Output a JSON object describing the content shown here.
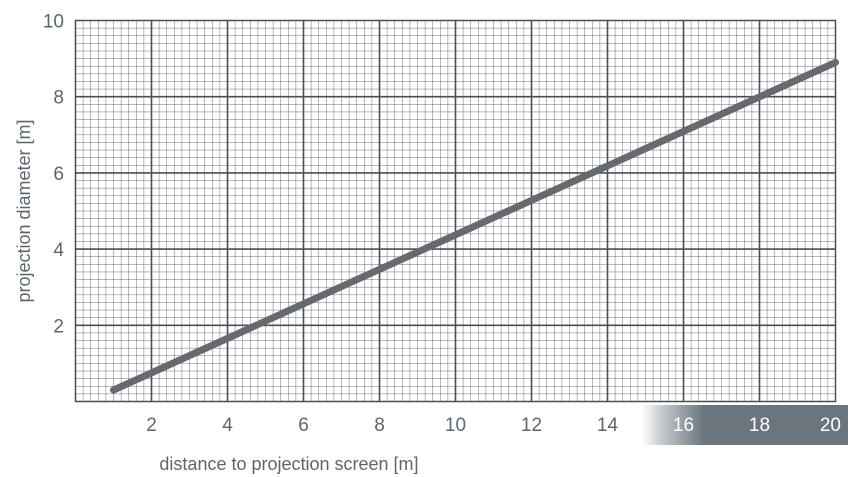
{
  "chart_data": {
    "type": "line",
    "title": "",
    "xlabel": "distance to projection screen [m]",
    "ylabel": "projection diameter [m]",
    "xlim": [
      0,
      20
    ],
    "ylim": [
      0,
      10
    ],
    "x_ticks": [
      2,
      4,
      6,
      8,
      10,
      12,
      14,
      16,
      18,
      20
    ],
    "y_ticks": [
      2,
      4,
      6,
      8,
      10
    ],
    "grid": true,
    "colors": {
      "line": "#666a6e",
      "grid": "#4a4f55",
      "tick_text": "#5c6670",
      "band": "#6b757d"
    },
    "series": [
      {
        "x": [
          1,
          20
        ],
        "y": [
          0.3,
          8.9
        ]
      }
    ]
  }
}
